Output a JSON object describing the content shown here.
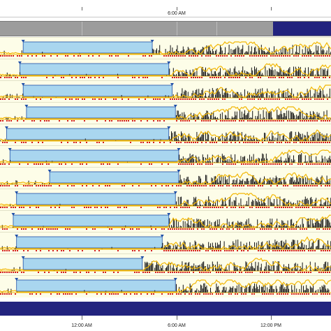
{
  "top_axis": {
    "labels": [
      "6:00 AM"
    ]
  },
  "bottom_axis": {
    "labels": [
      "12:00 AM",
      "6:00 AM",
      "12:00 PM"
    ]
  },
  "colors": {
    "rest_fill": "#a9d6ef",
    "rest_border": "#1f4fa8",
    "activity_line": "#f2b705",
    "activity_bars": "#111111",
    "red_marks": "#d41c1c",
    "row_background": "#fdfde8",
    "navy_band": "#22237e"
  },
  "scroll_band": {
    "thumb_label": ""
  },
  "rows": [
    {
      "rest": [
        0.07,
        0.46
      ]
    },
    {
      "rest": [
        0.06,
        0.51
      ]
    },
    {
      "rest": [
        0.07,
        0.52
      ]
    },
    {
      "rest": [
        0.08,
        0.53
      ]
    },
    {
      "rest": [
        0.02,
        0.51
      ]
    },
    {
      "rest": [
        0.03,
        0.54
      ]
    },
    {
      "rest": [
        0.15,
        0.54
      ]
    },
    {
      "rest": [
        0.05,
        0.53
      ]
    },
    {
      "rest": [
        0.04,
        0.51
      ]
    },
    {
      "rest": [
        0.05,
        0.49
      ]
    },
    {
      "rest": [
        0.07,
        0.43
      ]
    },
    {
      "rest": [
        0.05,
        0.53
      ]
    }
  ]
}
